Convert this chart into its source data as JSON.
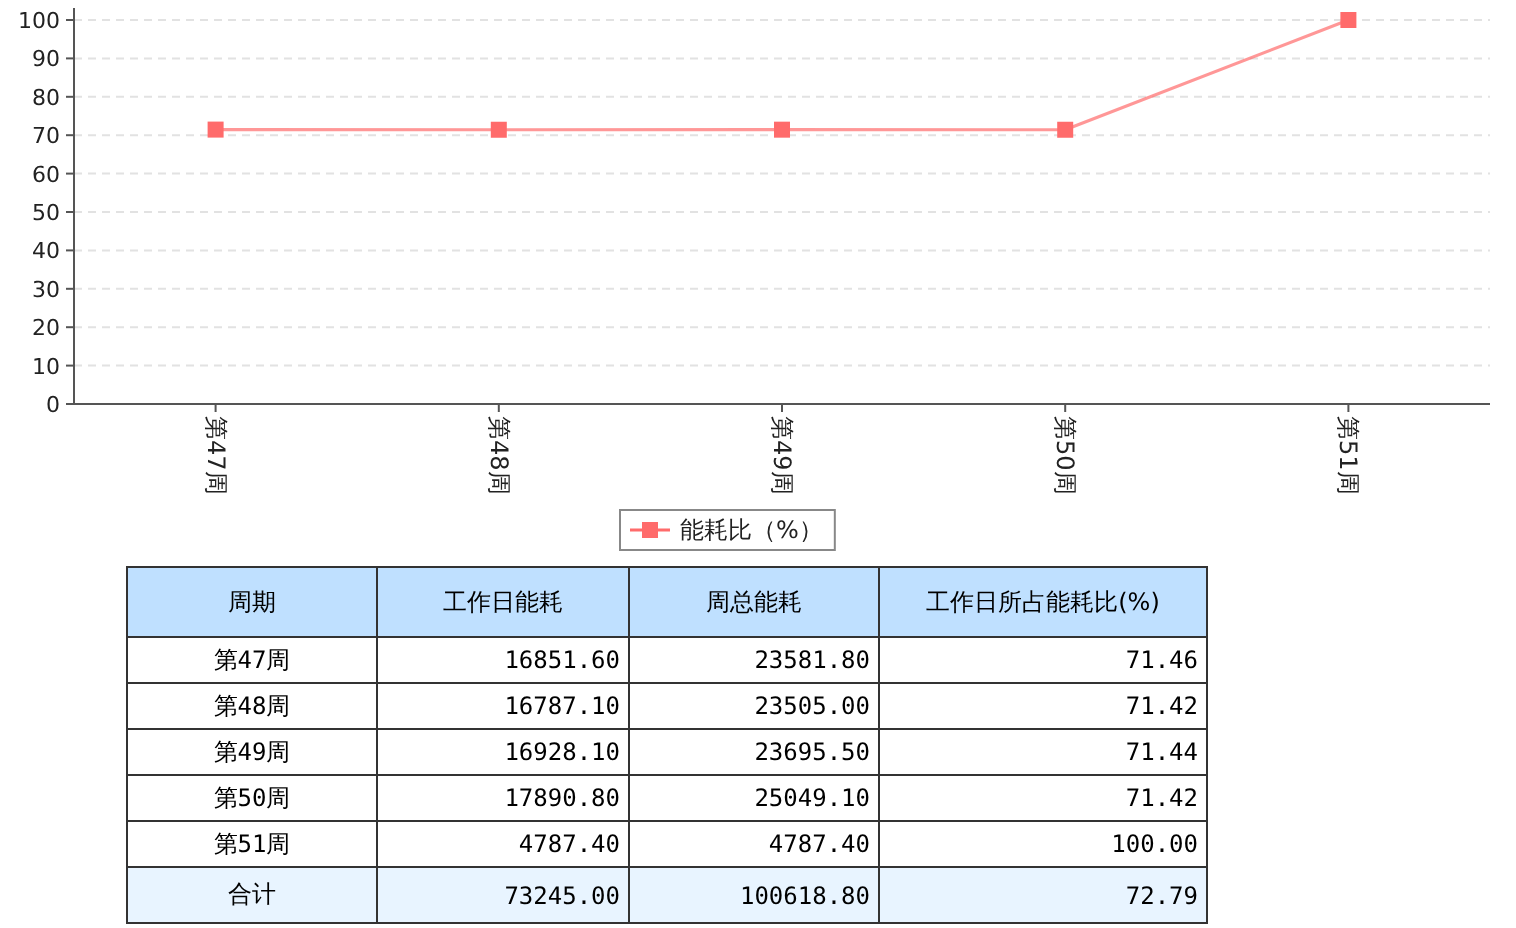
{
  "chart_data": {
    "type": "line",
    "categories": [
      "第47周",
      "第48周",
      "第49周",
      "第50周",
      "第51周"
    ],
    "series": [
      {
        "name": "能耗比（%）",
        "color": "#ff6b6b",
        "marker": "square",
        "values": [
          71.46,
          71.42,
          71.44,
          71.42,
          100
        ]
      }
    ],
    "ylim": [
      0,
      100
    ],
    "yticks": [
      0,
      10,
      20,
      30,
      40,
      50,
      60,
      70,
      80,
      90,
      100
    ],
    "grid": "y",
    "legend": "bottom",
    "annotations": [
      "周期",
      "工作日能耗",
      "周总能耗",
      "工作日所占能耗比(%)",
      "16851.60",
      "23581.80",
      "71.46",
      "16787.10",
      "23505.00",
      "71.42",
      "16928.10",
      "23695.50",
      "71.44",
      "17890.80",
      "25049.10",
      "71.42",
      "4787.40",
      "4787.40",
      "100.00",
      "合计",
      "73245.00",
      "100618.80",
      "72.79"
    ]
  }
}
